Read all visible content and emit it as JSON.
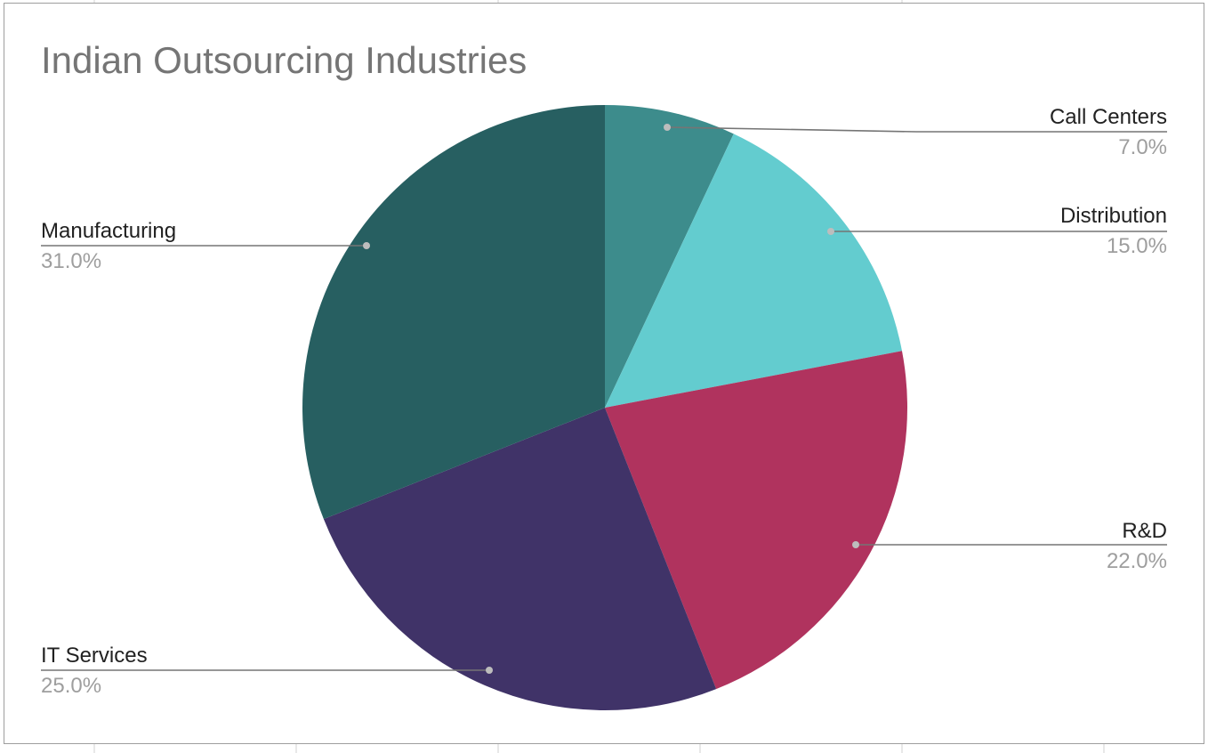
{
  "chart_data": {
    "type": "pie",
    "title": "Indian Outsourcing Industries",
    "start_angle_deg": 0,
    "direction": "clockwise",
    "slices": [
      {
        "label": "Call Centers",
        "value": 7.0,
        "pct_text": "7.0%",
        "color": "#3d8c8c"
      },
      {
        "label": "Distribution",
        "value": 15.0,
        "pct_text": "15.0%",
        "color": "#63cccf"
      },
      {
        "label": "R&D",
        "value": 22.0,
        "pct_text": "22.0%",
        "color": "#b0335e"
      },
      {
        "label": "IT Services",
        "value": 25.0,
        "pct_text": "25.0%",
        "color": "#403368"
      },
      {
        "label": "Manufacturing",
        "value": 31.0,
        "pct_text": "31.0%",
        "color": "#275f61"
      }
    ]
  }
}
